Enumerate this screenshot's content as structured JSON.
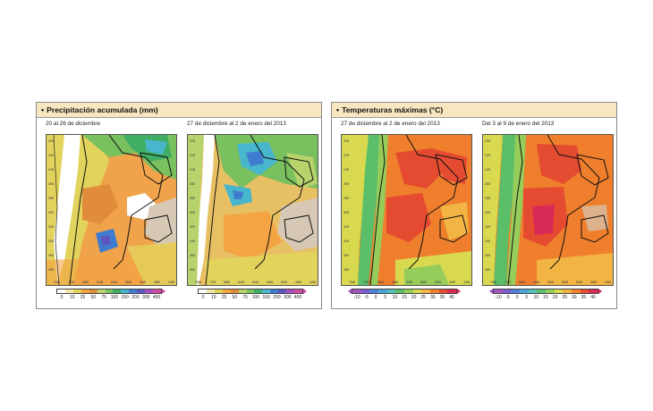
{
  "panels": {
    "precip": {
      "title": "Precipitación acumulada (mm)",
      "maps": [
        {
          "caption": "20 al 26 de diciembre"
        },
        {
          "caption": "27 de diciembre al 2 de enero del 2013"
        }
      ],
      "scale_ticks": [
        "0",
        "10",
        "25",
        "50",
        "75",
        "100",
        "150",
        "200",
        "300",
        "400"
      ],
      "scale_colors": [
        "#ffffff",
        "#f3e6a6",
        "#e2d35c",
        "#f4a443",
        "#e08c3a",
        "#b9d36c",
        "#79c05f",
        "#3fae64",
        "#48b6cc",
        "#3f7cd0",
        "#5b56c2",
        "#a84fbf",
        "#d04fa4"
      ]
    },
    "temp": {
      "title": "Temperaturas máximas (°C)",
      "maps": [
        {
          "caption": "27 de diciembre al 2 de enero del 2013"
        },
        {
          "caption": "Del 3 al 9 de enero del 2013"
        }
      ],
      "scale_ticks": [
        "-10",
        "-5",
        "0",
        "5",
        "10",
        "15",
        "20",
        "25",
        "30",
        "35",
        "40"
      ],
      "scale_colors": [
        "#a257bf",
        "#7c5bd0",
        "#4f7fd6",
        "#4aa6d8",
        "#52c2b5",
        "#5bbf6a",
        "#96cc5a",
        "#d8d94f",
        "#f2b443",
        "#ef7f2d",
        "#e44b31",
        "#d92a55"
      ]
    }
  },
  "map_axis_labels": {
    "lat": [
      "20S",
      "22S",
      "24S",
      "26S",
      "28S",
      "30S",
      "32S",
      "34S",
      "36S",
      "38S"
    ],
    "lon": [
      "76W",
      "72W",
      "68W",
      "64W",
      "60W",
      "56W",
      "52W",
      "48W",
      "44W"
    ]
  }
}
